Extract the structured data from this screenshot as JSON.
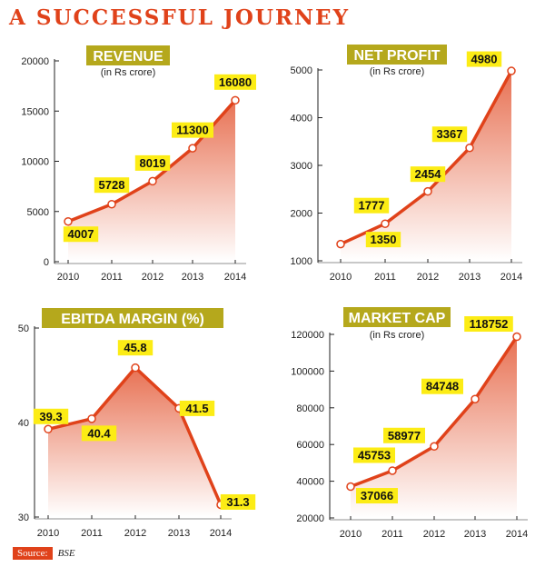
{
  "title": "A SUCCESSFUL JOURNEY",
  "source": {
    "label": "Source:",
    "value": "BSE"
  },
  "colors": {
    "accent": "#e0421a",
    "label_bg": "#fcec15",
    "title_badge": "#b5a81c",
    "axis": "#222222"
  },
  "chart_data": [
    {
      "type": "line",
      "title": "REVENUE",
      "subtitle": "(in Rs crore)",
      "categories": [
        "2010",
        "2011",
        "2012",
        "2013",
        "2014"
      ],
      "values": [
        4007,
        5728,
        8019,
        11300,
        16080
      ],
      "data_labels": [
        "4007",
        "5728",
        "8019",
        "11300",
        "16080"
      ],
      "ylim": [
        0,
        20000
      ],
      "yticks": [
        0,
        5000,
        10000,
        15000,
        20000
      ],
      "ytick_labels": [
        "0",
        "5000",
        "10000",
        "15000",
        "20000"
      ]
    },
    {
      "type": "line",
      "title": "NET PROFIT",
      "subtitle": "(in Rs crore)",
      "categories": [
        "2010",
        "2011",
        "2012",
        "2013",
        "2014"
      ],
      "values": [
        1350,
        1777,
        2454,
        3367,
        4980
      ],
      "data_labels": [
        "1350",
        "1777",
        "2454",
        "3367",
        "4980"
      ],
      "ylim": [
        1000,
        5000
      ],
      "yticks": [
        1000,
        2000,
        3000,
        4000,
        5000
      ],
      "ytick_labels": [
        "1000",
        "2000",
        "3000",
        "4000",
        "5000"
      ]
    },
    {
      "type": "line",
      "title": "EBITDA MARGIN (%)",
      "subtitle": "",
      "categories": [
        "2010",
        "2011",
        "2012",
        "2013",
        "2014"
      ],
      "values": [
        39.3,
        40.4,
        45.8,
        41.5,
        31.3
      ],
      "data_labels": [
        "39.3",
        "40.4",
        "45.8",
        "41.5",
        "31.3"
      ],
      "ylim": [
        30,
        50
      ],
      "yticks": [
        30,
        40,
        50
      ],
      "ytick_labels": [
        "30",
        "40",
        "50"
      ]
    },
    {
      "type": "line",
      "title": "MARKET CAP",
      "subtitle": "(in Rs crore)",
      "categories": [
        "2010",
        "2011",
        "2012",
        "2013",
        "2014"
      ],
      "values": [
        37066,
        45753,
        58977,
        84748,
        118752
      ],
      "data_labels": [
        "37066",
        "45753",
        "58977",
        "84748",
        "118752"
      ],
      "ylim": [
        20000,
        120000
      ],
      "yticks": [
        20000,
        40000,
        60000,
        80000,
        100000,
        120000
      ],
      "ytick_labels": [
        "20000",
        "40000",
        "60000",
        "80000",
        "100000",
        "120000"
      ]
    }
  ]
}
